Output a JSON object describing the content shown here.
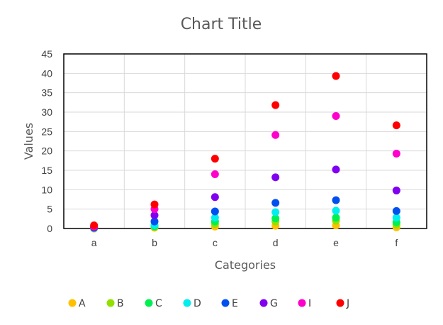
{
  "chart_data": {
    "type": "scatter",
    "title": "Chart Title",
    "xlabel": "Categories",
    "ylabel": "Values",
    "categories": [
      "a",
      "b",
      "c",
      "d",
      "e",
      "f"
    ],
    "ylim": [
      0,
      45
    ],
    "yticks": [
      0,
      5,
      10,
      15,
      20,
      25,
      30,
      35,
      40,
      45
    ],
    "grid": true,
    "legend_position": "bottom",
    "series": [
      {
        "name": "A",
        "color": "#FFC000",
        "values": [
          0.0,
          0.2,
          0.5,
          0.7,
          0.8,
          0.3
        ]
      },
      {
        "name": "B",
        "color": "#92E000",
        "values": [
          0.0,
          0.4,
          1.2,
          1.8,
          2.0,
          1.0
        ]
      },
      {
        "name": "C",
        "color": "#00F050",
        "values": [
          0.1,
          0.6,
          1.8,
          2.6,
          2.8,
          1.6
        ]
      },
      {
        "name": "D",
        "color": "#00EEEE",
        "values": [
          0.1,
          0.9,
          2.8,
          4.2,
          4.6,
          2.8
        ]
      },
      {
        "name": "E",
        "color": "#0050F0",
        "values": [
          0.2,
          1.8,
          4.4,
          6.6,
          7.3,
          4.5
        ]
      },
      {
        "name": "G",
        "color": "#8000F0",
        "values": [
          0.3,
          3.4,
          8.1,
          13.2,
          15.2,
          9.8
        ]
      },
      {
        "name": "I",
        "color": "#FF00CC",
        "values": [
          0.5,
          5.0,
          14.0,
          24.1,
          29.0,
          19.3
        ]
      },
      {
        "name": "J",
        "color": "#FF0000",
        "values": [
          0.8,
          6.2,
          18.0,
          31.8,
          39.3,
          26.6
        ]
      }
    ]
  }
}
